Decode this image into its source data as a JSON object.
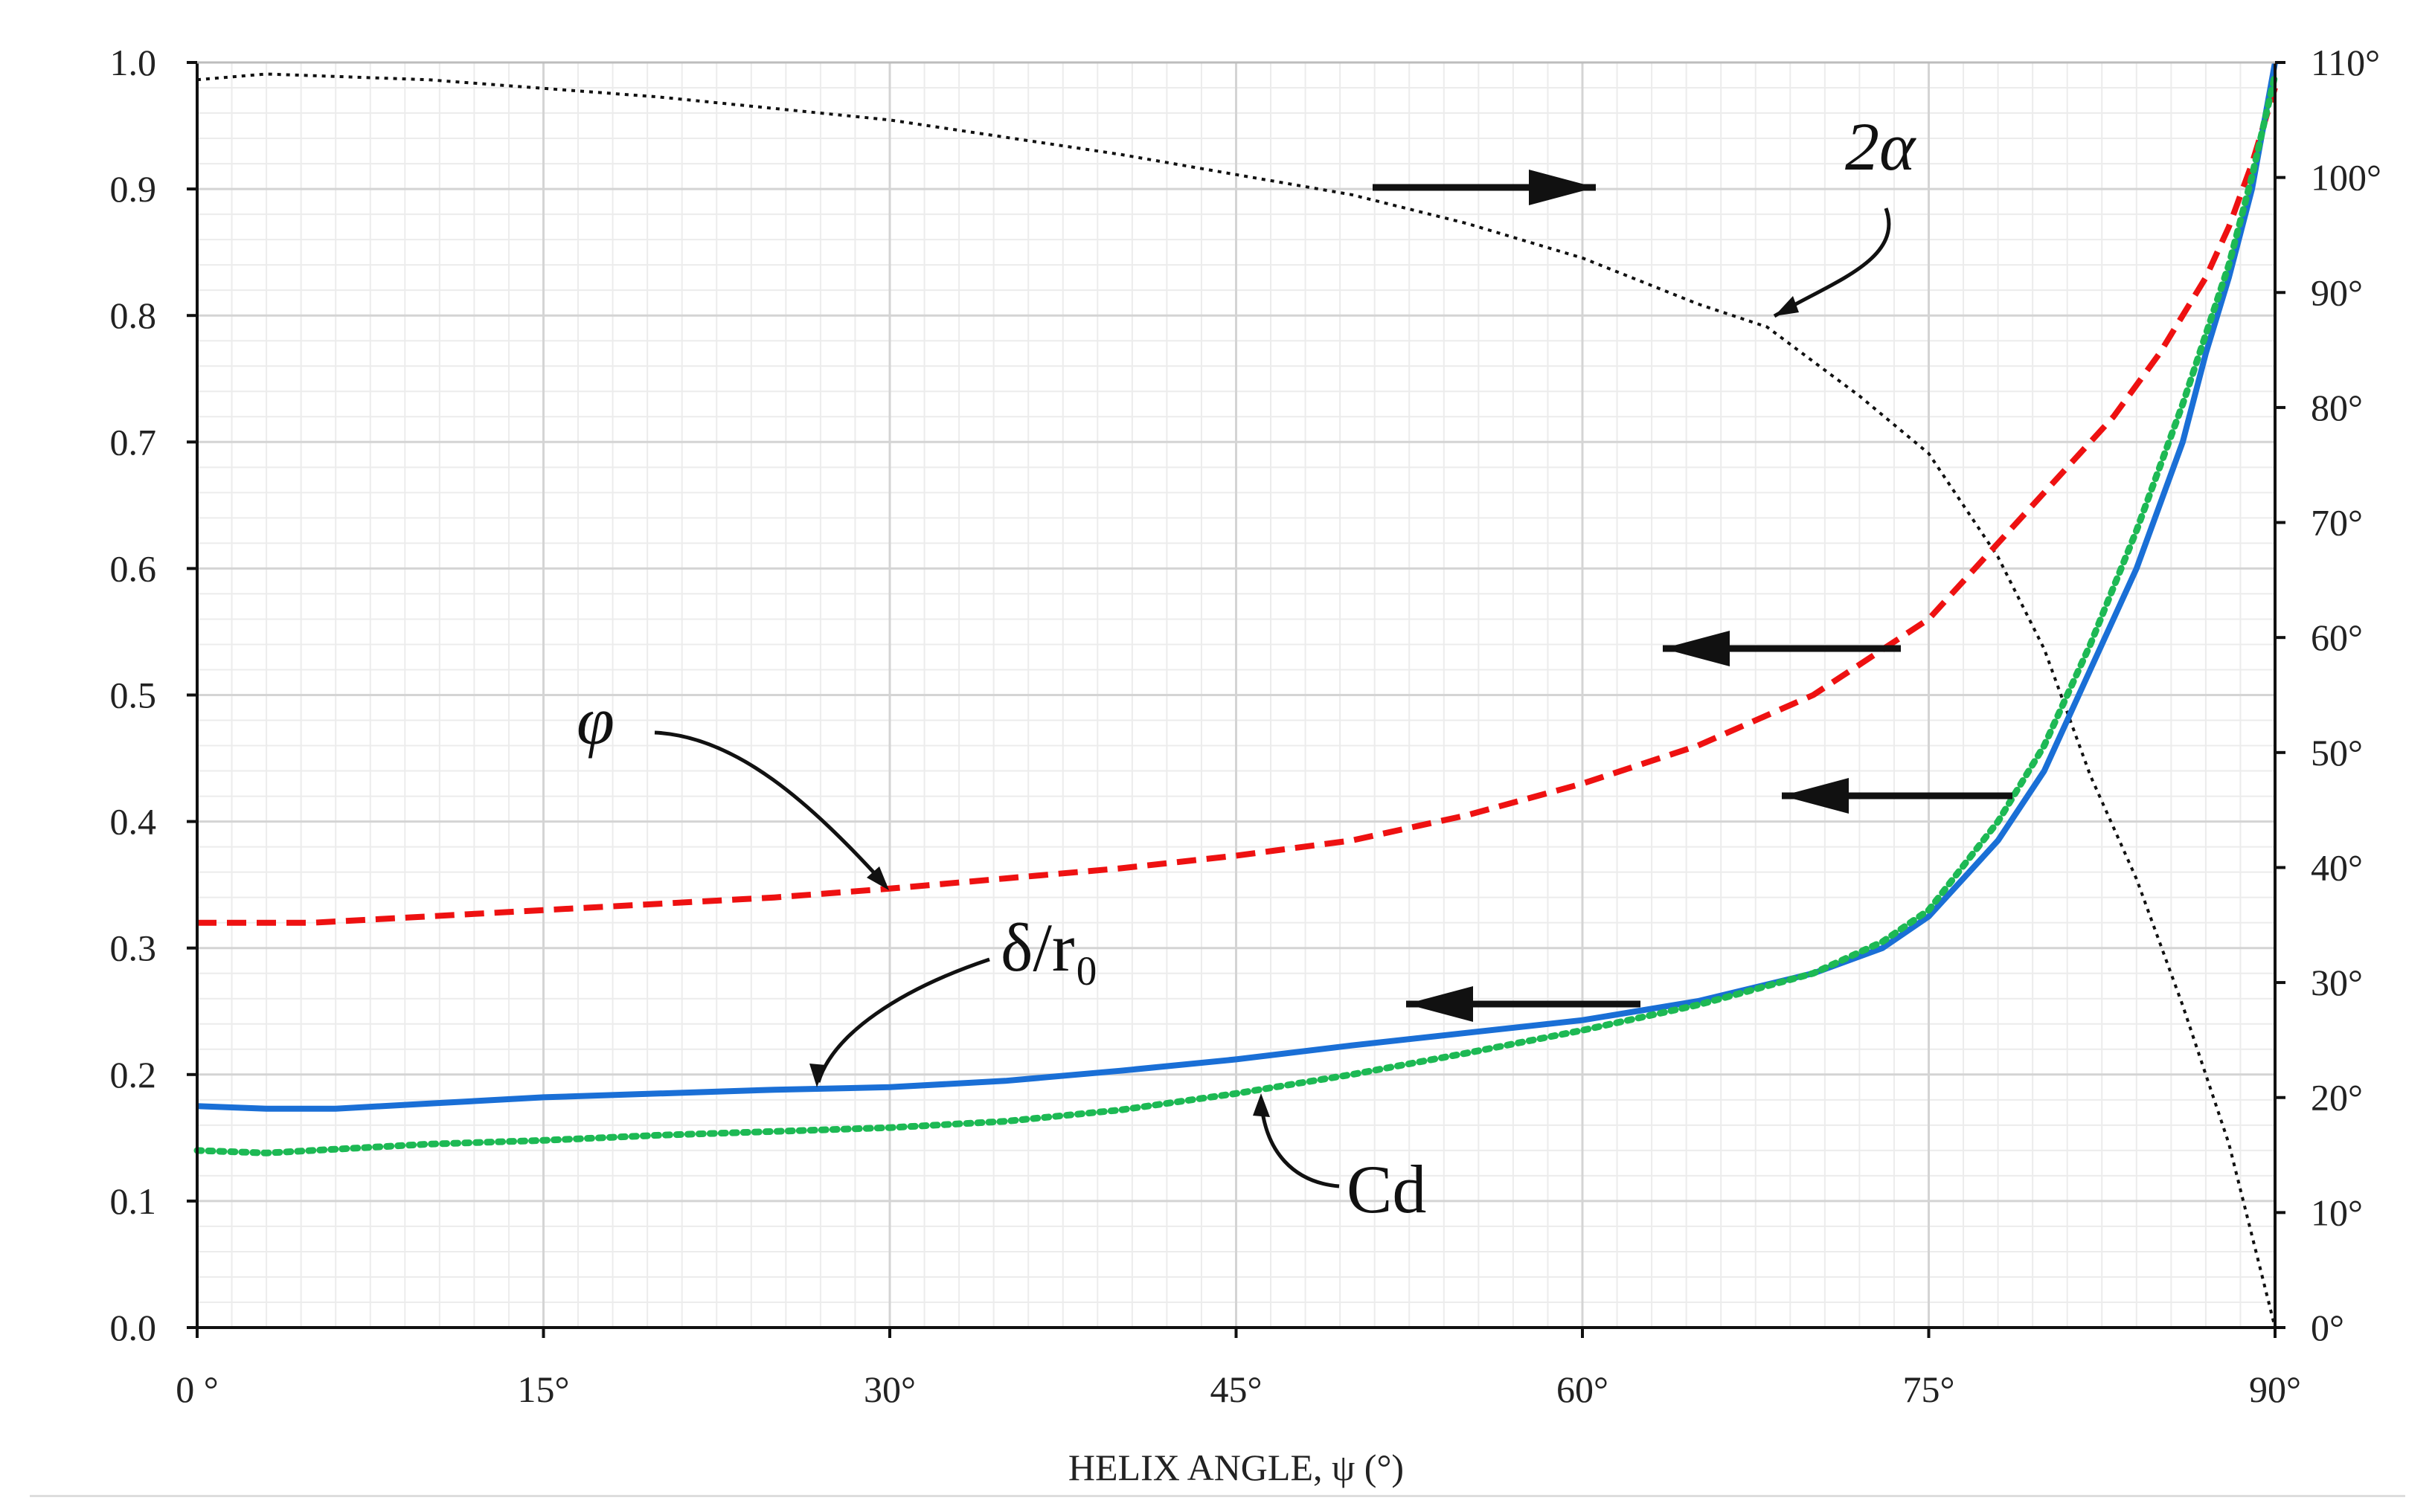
{
  "chart_data": {
    "type": "line",
    "xlabel": "HELIX ANGLE, ψ (°)",
    "xlim": [
      0,
      90
    ],
    "ylim": [
      0,
      1
    ],
    "y2lim": [
      0,
      110
    ],
    "grid": true,
    "x_ticks": [
      "0 °",
      "15°",
      "30°",
      "45°",
      "60°",
      "75°",
      "90°"
    ],
    "y_ticks": [
      "0.0",
      "0.1",
      "0.2",
      "0.3",
      "0.4",
      "0.5",
      "0.6",
      "0.7",
      "0.8",
      "0.9",
      "1.0"
    ],
    "y2_ticks": [
      "0°",
      "10°",
      "20°",
      "30°",
      "40°",
      "50°",
      "60°",
      "70°",
      "80°",
      "90°",
      "100°",
      "110°"
    ],
    "series": [
      {
        "name": "2α",
        "axis": "right",
        "color": "#111111",
        "style": "dotted",
        "x": [
          0,
          3,
          10,
          20,
          30,
          40,
          50,
          55,
          60,
          65,
          68,
          70,
          72,
          75,
          78,
          80,
          82,
          84,
          86,
          88,
          90
        ],
        "y": [
          108.5,
          109,
          108.5,
          107,
          105,
          102,
          98.5,
          96,
          93,
          89,
          87,
          84,
          81,
          76,
          67,
          59,
          48,
          39,
          28,
          16,
          0
        ]
      },
      {
        "name": "φ",
        "axis": "left",
        "color": "#ee1111",
        "style": "dashed",
        "x": [
          0,
          5,
          10,
          15,
          20,
          25,
          30,
          35,
          40,
          45,
          50,
          55,
          60,
          65,
          70,
          75,
          80,
          83,
          85,
          87,
          88,
          89,
          90
        ],
        "y": [
          0.32,
          0.32,
          0.325,
          0.33,
          0.335,
          0.34,
          0.347,
          0.355,
          0.363,
          0.373,
          0.385,
          0.405,
          0.43,
          0.46,
          0.5,
          0.56,
          0.66,
          0.72,
          0.77,
          0.83,
          0.87,
          0.92,
          0.98
        ]
      },
      {
        "name": "δ/r₀",
        "axis": "left",
        "color": "#1a6fd6",
        "style": "solid",
        "x": [
          0,
          3,
          6,
          10,
          15,
          20,
          25,
          30,
          35,
          40,
          45,
          50,
          55,
          60,
          65,
          70,
          73,
          75,
          78,
          80,
          82,
          84,
          86,
          87,
          88,
          89,
          90
        ],
        "y": [
          0.175,
          0.173,
          0.173,
          0.177,
          0.182,
          0.185,
          0.188,
          0.19,
          0.195,
          0.203,
          0.212,
          0.223,
          0.233,
          0.243,
          0.258,
          0.28,
          0.3,
          0.325,
          0.385,
          0.44,
          0.52,
          0.6,
          0.7,
          0.77,
          0.83,
          0.9,
          1.0
        ]
      },
      {
        "name": "Cd",
        "axis": "left",
        "color": "#1db954",
        "style": "dotted",
        "x": [
          0,
          3,
          5,
          10,
          15,
          20,
          25,
          30,
          35,
          40,
          45,
          50,
          55,
          60,
          65,
          70,
          73,
          75,
          78,
          80,
          82,
          84,
          86,
          88,
          89,
          90
        ],
        "y": [
          0.14,
          0.138,
          0.14,
          0.145,
          0.148,
          0.152,
          0.155,
          0.158,
          0.163,
          0.172,
          0.185,
          0.2,
          0.217,
          0.235,
          0.255,
          0.28,
          0.305,
          0.33,
          0.4,
          0.46,
          0.54,
          0.63,
          0.73,
          0.84,
          0.91,
          0.99
        ]
      }
    ],
    "annotations": [
      {
        "label": "2α"
      },
      {
        "label": "φ"
      },
      {
        "label": "δ/r₀"
      },
      {
        "label": "Cd"
      }
    ]
  }
}
